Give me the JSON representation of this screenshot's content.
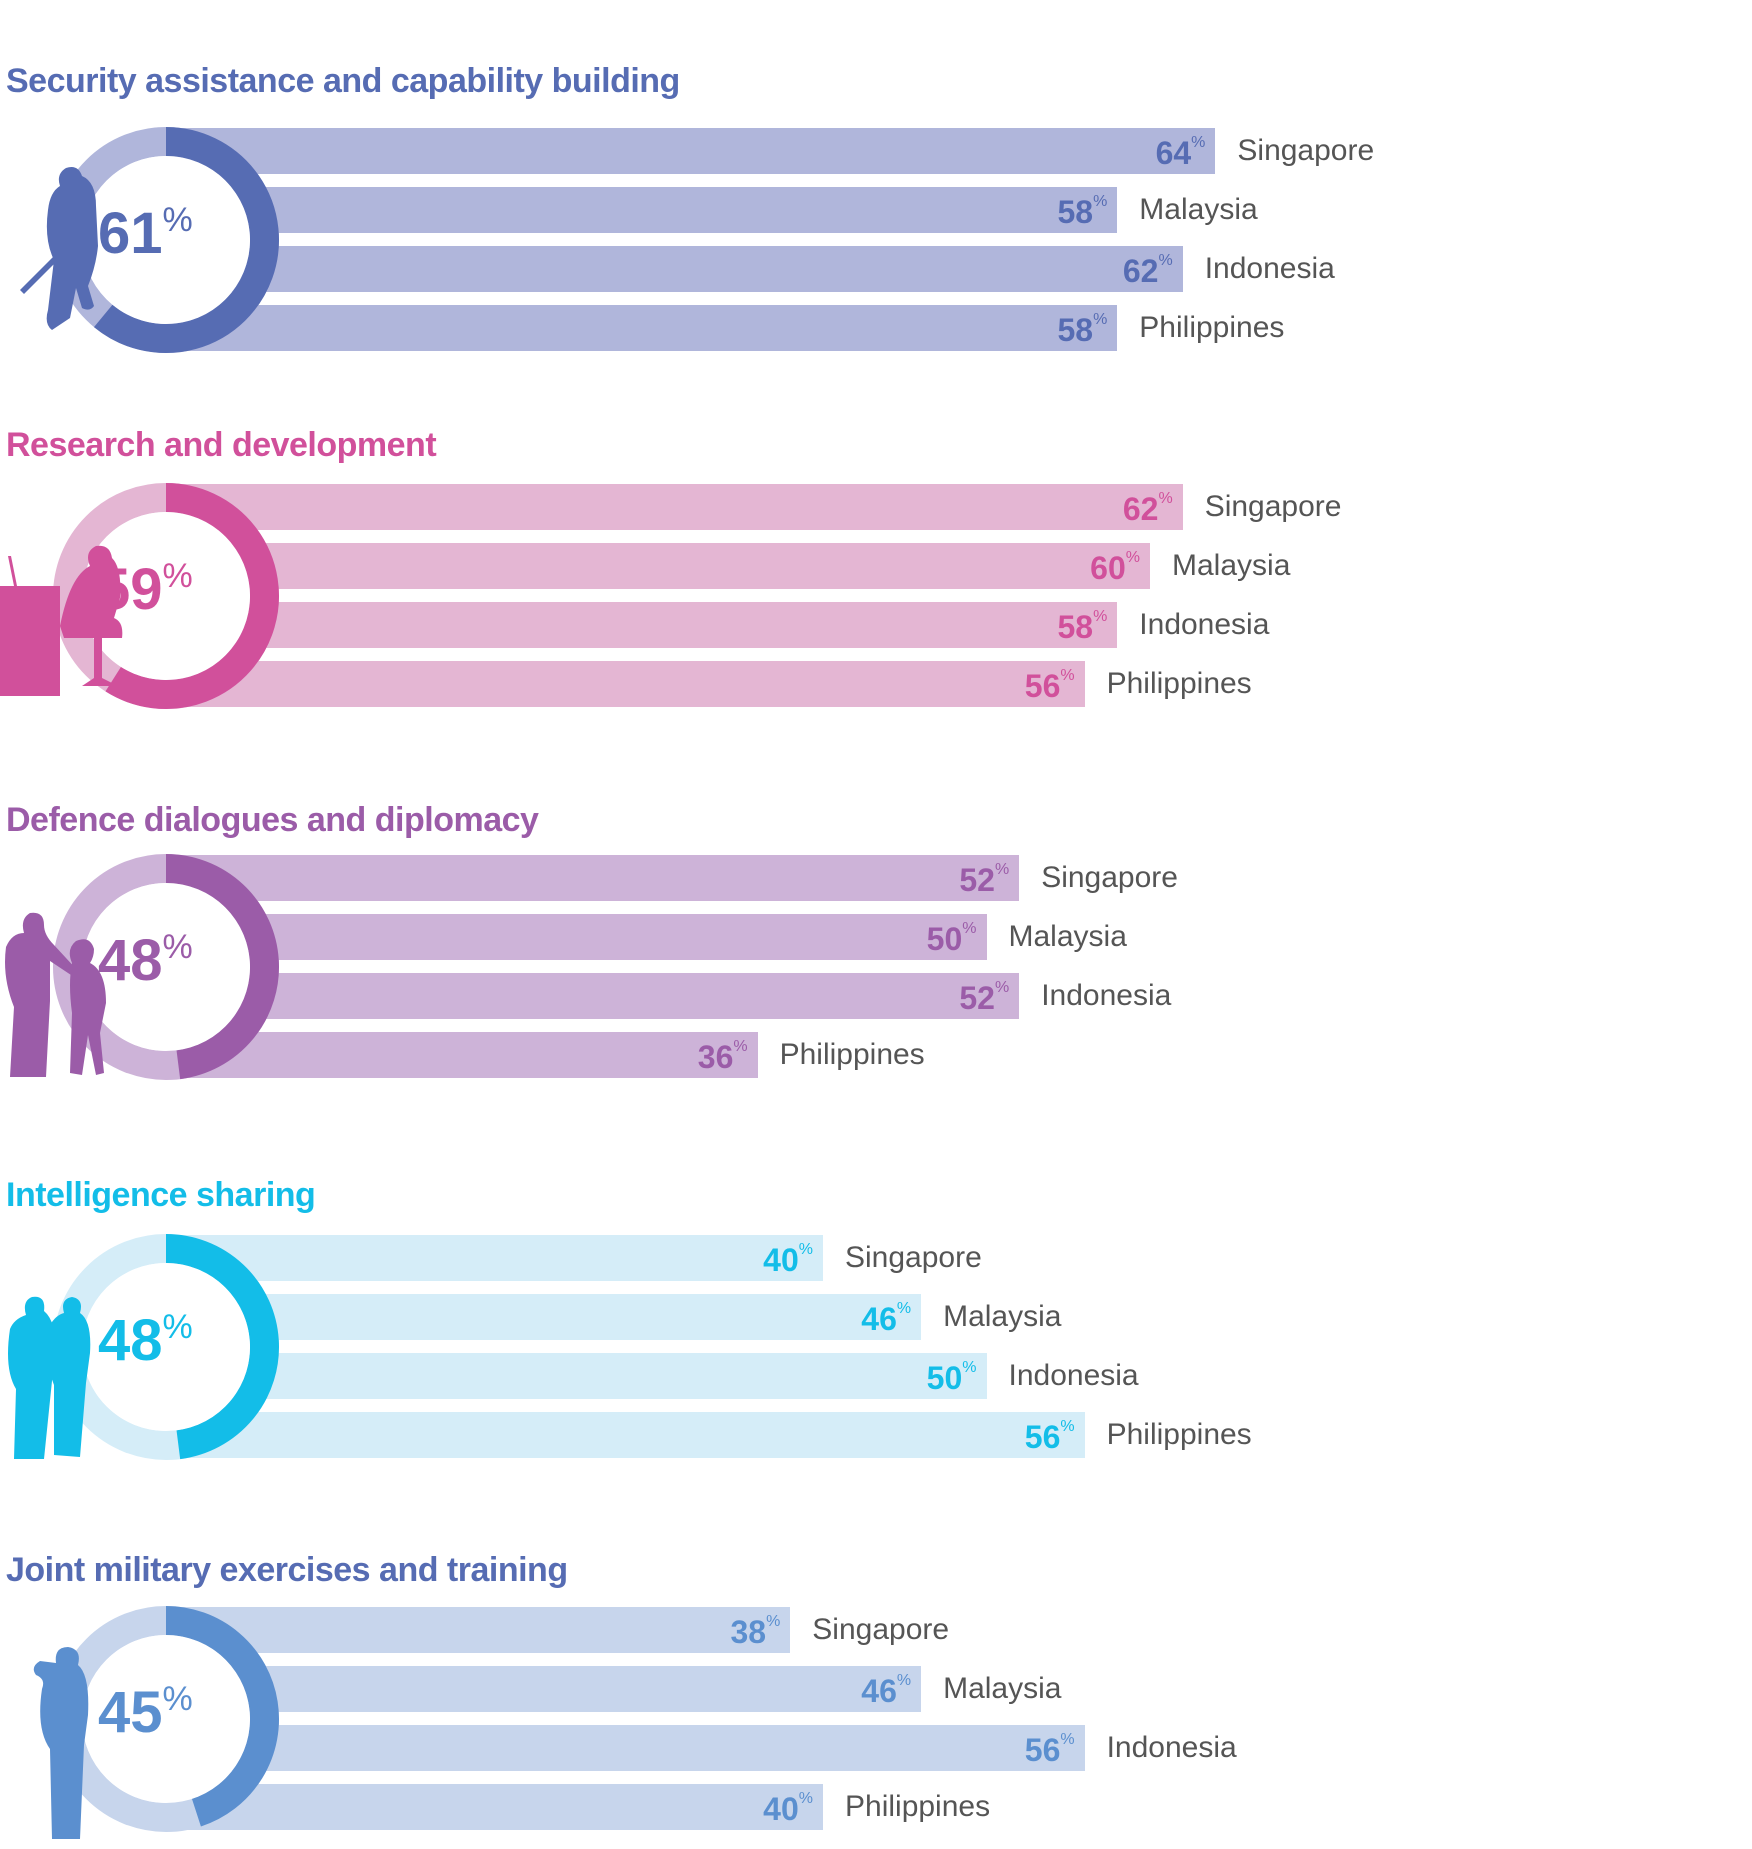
{
  "chart_data": [
    {
      "type": "bar",
      "title": "Security assistance and capability building",
      "overall": 61,
      "unit": "%",
      "color": "#566cb3",
      "light": "#b0b6db",
      "icon": "soldier-icon",
      "categories": [
        "Singapore",
        "Malaysia",
        "Indonesia",
        "Philippines"
      ],
      "values": [
        64,
        58,
        62,
        58
      ]
    },
    {
      "type": "bar",
      "title": "Research and development",
      "overall": 59,
      "unit": "%",
      "color": "#d1509b",
      "light": "#e4b6d3",
      "icon": "researcher-icon",
      "categories": [
        "Singapore",
        "Malaysia",
        "Indonesia",
        "Philippines"
      ],
      "values": [
        62,
        60,
        58,
        56
      ]
    },
    {
      "type": "bar",
      "title": "Defence dialogues and diplomacy",
      "overall": 48,
      "unit": "%",
      "color": "#9b5ca8",
      "light": "#cdb3d8",
      "icon": "handshake-icon",
      "categories": [
        "Singapore",
        "Malaysia",
        "Indonesia",
        "Philippines"
      ],
      "values": [
        52,
        50,
        52,
        36
      ]
    },
    {
      "type": "bar",
      "title": "Intelligence sharing",
      "overall": 48,
      "unit": "%",
      "color": "#13bde8",
      "light": "#d5edf8",
      "icon": "two-people-icon",
      "categories": [
        "Singapore",
        "Malaysia",
        "Indonesia",
        "Philippines"
      ],
      "values": [
        40,
        46,
        50,
        56
      ]
    },
    {
      "type": "bar",
      "title": "Joint military exercises and training",
      "overall": 45,
      "unit": "%",
      "color": "#5b8fcf",
      "light": "#c7d5ec",
      "titleColor": "#566cb3",
      "icon": "saluting-soldier-icon",
      "categories": [
        "Singapore",
        "Malaysia",
        "Indonesia",
        "Philippines"
      ],
      "values": [
        38,
        46,
        56,
        40
      ]
    }
  ]
}
